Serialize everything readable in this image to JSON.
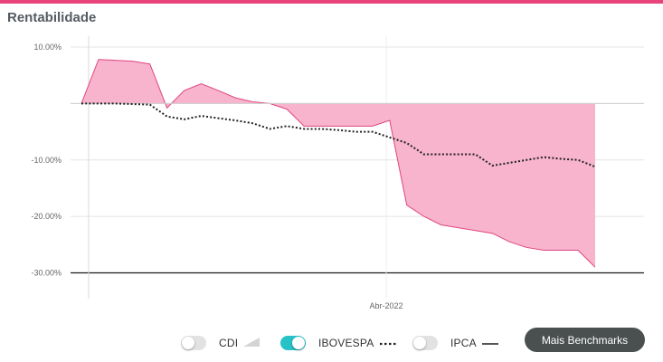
{
  "header": {
    "title": "Rentabilidade"
  },
  "colors": {
    "accent": "#e8447c",
    "area_fill": "#f8b4cd",
    "area_stroke": "#e0457e",
    "toggle_on": "#27c2c6",
    "button_bg": "#4a4f50"
  },
  "legend": {
    "items": [
      {
        "label": "CDI",
        "on": false,
        "symbol": "area-triangle-icon"
      },
      {
        "label": "IBOVESPA",
        "on": true,
        "symbol": "dotted-line-icon"
      },
      {
        "label": "IPCA",
        "on": false,
        "symbol": "solid-line-icon"
      }
    ],
    "more_button": "Mais Benchmarks"
  },
  "chart_data": {
    "type": "area",
    "title": "Rentabilidade",
    "xlabel": "",
    "ylabel": "",
    "yticks": [
      10,
      0,
      -10,
      -20,
      -30
    ],
    "ytick_labels": [
      "10.00%",
      "",
      "-10.00%",
      "-20.00%",
      "-30.00%"
    ],
    "ylim": [
      -35.5,
      11.5
    ],
    "xlim": [
      0,
      30
    ],
    "xtick": {
      "position": 17.8,
      "label": "Abr-2022"
    },
    "grid": true,
    "series": [
      {
        "style": "area",
        "x": [
          0,
          1,
          3,
          4,
          5,
          6,
          7,
          8,
          9,
          10,
          11,
          12,
          13,
          14,
          15,
          16,
          17,
          18,
          19,
          20,
          21,
          22,
          23,
          24,
          25,
          26,
          27,
          28,
          29,
          30
        ],
        "values": [
          0,
          7.8,
          7.5,
          7.0,
          -0.8,
          2.3,
          3.5,
          2.3,
          1.0,
          0.3,
          0,
          -1.0,
          -4.0,
          -4.0,
          -4.0,
          -4.0,
          -4.0,
          -3.0,
          -18.0,
          -20.0,
          -21.5,
          -22.0,
          -22.5,
          -23.0,
          -24.5,
          -25.5,
          -26.0,
          -26.0,
          -26.0,
          -29.0
        ]
      },
      {
        "style": "dotted-line",
        "x": [
          0,
          2,
          4,
          5,
          6,
          7,
          8,
          9,
          10,
          11,
          12,
          13,
          14,
          15,
          16,
          17,
          18,
          19,
          20,
          21,
          22,
          23,
          24,
          25,
          26,
          27,
          28,
          29,
          30
        ],
        "values": [
          0,
          0,
          -0.2,
          -2.3,
          -2.8,
          -2.2,
          -2.6,
          -3.0,
          -3.5,
          -4.5,
          -4.0,
          -4.5,
          -4.5,
          -4.7,
          -5.0,
          -5.0,
          -6.0,
          -7.0,
          -9.0,
          -9.0,
          -9.0,
          -9.0,
          -11.0,
          -10.5,
          -10.0,
          -9.5,
          -9.8,
          -10.0,
          -11.2
        ]
      }
    ]
  }
}
